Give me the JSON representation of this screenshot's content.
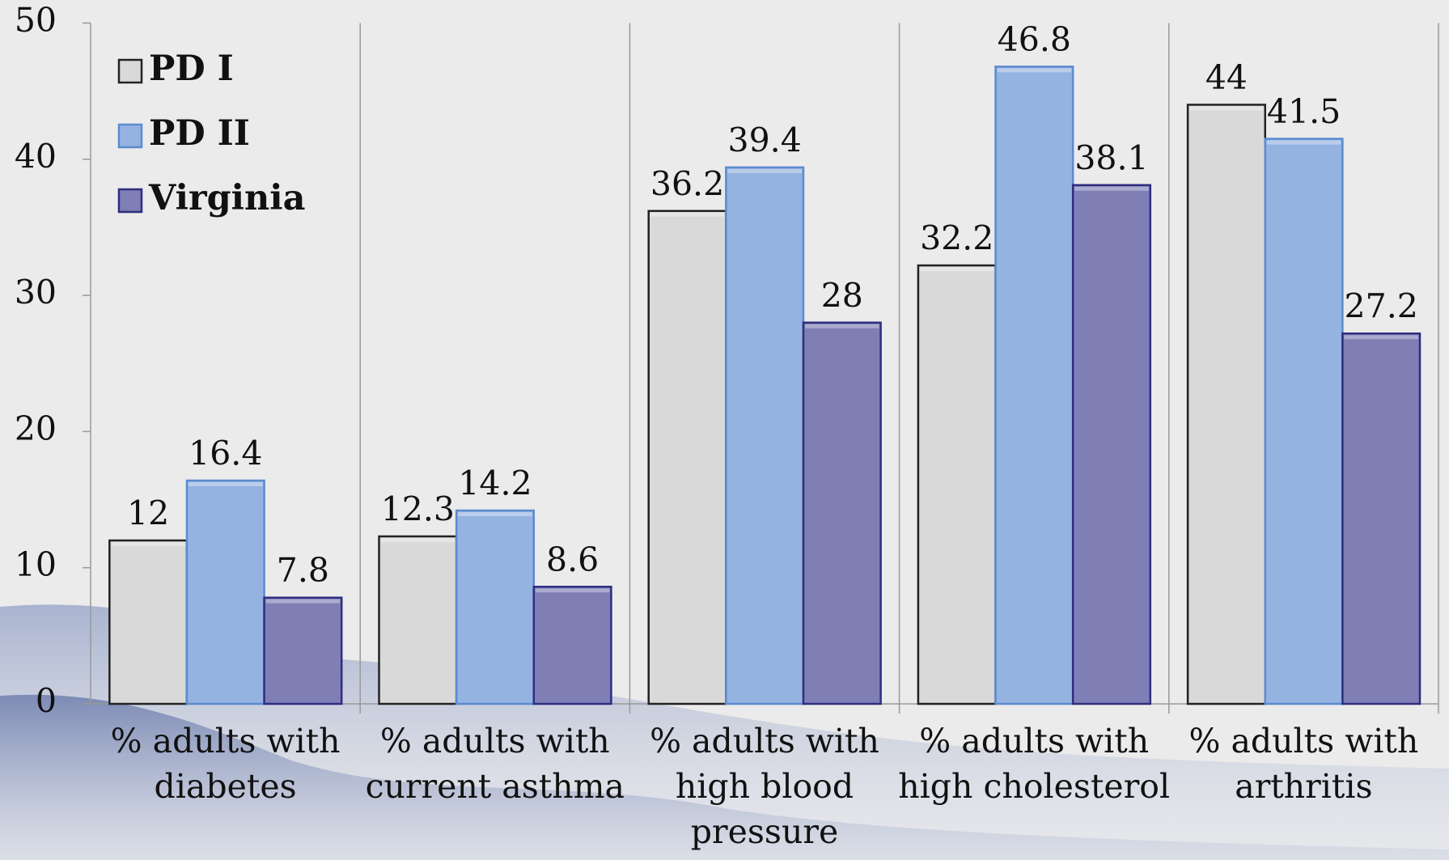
{
  "chart_data": {
    "type": "bar",
    "categories": [
      "% adults with diabetes",
      "% adults with current asthma",
      "% adults with high blood pressure",
      "% adults with high cholesterol",
      "% adults with arthritis"
    ],
    "series": [
      {
        "name": "PD I",
        "color": "#d9d9d9",
        "values": [
          12,
          12.3,
          36.2,
          32.2,
          44
        ]
      },
      {
        "name": "PD II",
        "color": "#95b3e0",
        "values": [
          16.4,
          14.2,
          39.4,
          46.8,
          41.5
        ]
      },
      {
        "name": "Virginia",
        "color": "#7f7fb5",
        "values": [
          7.8,
          8.6,
          28,
          38.1,
          27.2
        ]
      }
    ],
    "ylim": [
      0,
      50
    ],
    "yticks": [
      0,
      10,
      20,
      30,
      40,
      50
    ],
    "legend": "top-left"
  }
}
